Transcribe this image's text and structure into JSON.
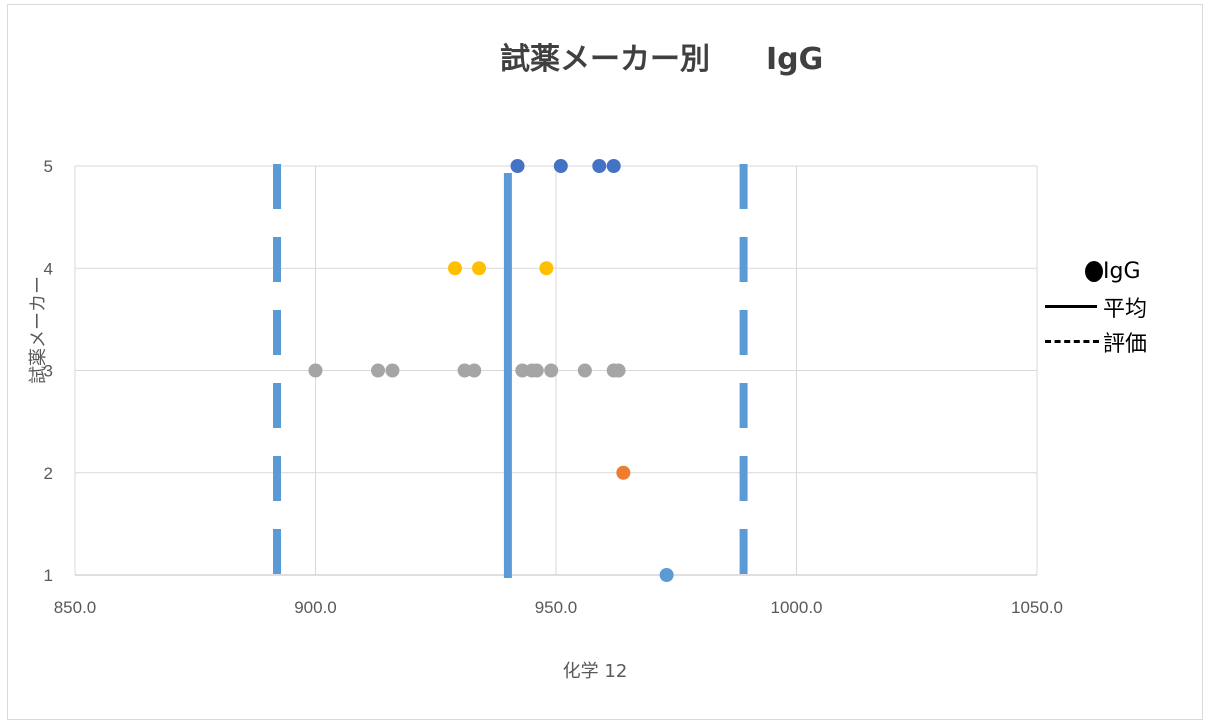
{
  "title": {
    "main": "試薬メーカー別",
    "sub": "IgG"
  },
  "chart_data": {
    "type": "scatter",
    "title": "試薬メーカー別 IgG",
    "xlabel": "化学 12",
    "ylabel": "試薬メーカー",
    "xlim": [
      850.0,
      1050.0
    ],
    "ylim": [
      1,
      5
    ],
    "x_ticks": [
      "850.0",
      "900.0",
      "950.0",
      "1000.0",
      "1050.0"
    ],
    "y_ticks": [
      "1",
      "2",
      "3",
      "4",
      "5"
    ],
    "grid": true,
    "legend_position": "right",
    "series": [
      {
        "name": "IgG",
        "color": "#5B9BD5",
        "points": [
          [
            973,
            1
          ]
        ]
      },
      {
        "color": "#ED7D31",
        "points": [
          [
            964,
            2
          ]
        ]
      },
      {
        "color": "#A5A5A5",
        "points": [
          [
            900,
            3
          ],
          [
            913,
            3
          ],
          [
            916,
            3
          ],
          [
            931,
            3
          ],
          [
            933,
            3
          ],
          [
            943,
            3
          ],
          [
            945,
            3
          ],
          [
            946,
            3
          ],
          [
            949,
            3
          ],
          [
            956,
            3
          ],
          [
            962,
            3
          ],
          [
            963,
            3
          ]
        ]
      },
      {
        "color": "#FFC000",
        "points": [
          [
            929,
            4
          ],
          [
            934,
            4
          ],
          [
            948,
            4
          ]
        ]
      },
      {
        "color": "#4472C4",
        "points": [
          [
            942,
            5
          ],
          [
            951,
            5
          ],
          [
            959,
            5
          ],
          [
            962,
            5
          ]
        ]
      }
    ],
    "vertical_lines": [
      {
        "name": "平均",
        "x": 940,
        "style": "solid",
        "color": "#5B9BD5"
      },
      {
        "name": "評価",
        "x": 892,
        "style": "dashed",
        "color": "#5B9BD5"
      },
      {
        "name": "評価",
        "x": 989,
        "style": "dashed",
        "color": "#5B9BD5"
      }
    ]
  },
  "legend": [
    {
      "symbol": "dot",
      "label": "IgG"
    },
    {
      "symbol": "solid",
      "label": "平均"
    },
    {
      "symbol": "dashed",
      "label": "評価"
    }
  ]
}
